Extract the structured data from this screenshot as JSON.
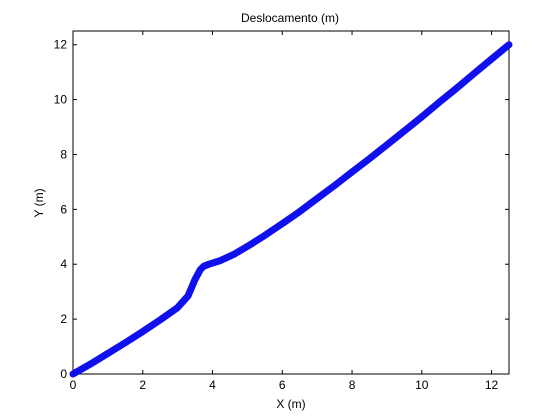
{
  "chart_data": {
    "type": "line",
    "title": "Deslocamento (m)",
    "xlabel": "X (m)",
    "ylabel": "Y (m)",
    "xlim": [
      0,
      12.5
    ],
    "ylim": [
      0,
      12.5
    ],
    "xticks": [
      0,
      2,
      4,
      6,
      8,
      10,
      12
    ],
    "yticks": [
      0,
      2,
      4,
      6,
      8,
      10,
      12
    ],
    "grid": false,
    "colors": {
      "line": "#1010ee",
      "axes": "#000000",
      "background": "#ffffff"
    },
    "series": [
      {
        "x": [
          0,
          0.5,
          1.0,
          1.5,
          2.0,
          2.5,
          3.0,
          3.3,
          3.5,
          3.65,
          3.75,
          3.9,
          4.2,
          4.6,
          5.0,
          5.5,
          6.0,
          6.5,
          7.0,
          7.5,
          8.0,
          8.5,
          9.0,
          9.5,
          10.0,
          10.5,
          11.0,
          11.5,
          12.0,
          12.5
        ],
        "y": [
          0,
          0.36,
          0.75,
          1.14,
          1.55,
          1.97,
          2.42,
          2.85,
          3.45,
          3.8,
          3.93,
          4.0,
          4.12,
          4.35,
          4.65,
          5.05,
          5.48,
          5.92,
          6.4,
          6.87,
          7.36,
          7.85,
          8.35,
          8.86,
          9.37,
          9.9,
          10.42,
          10.95,
          11.48,
          12.0
        ]
      }
    ]
  }
}
